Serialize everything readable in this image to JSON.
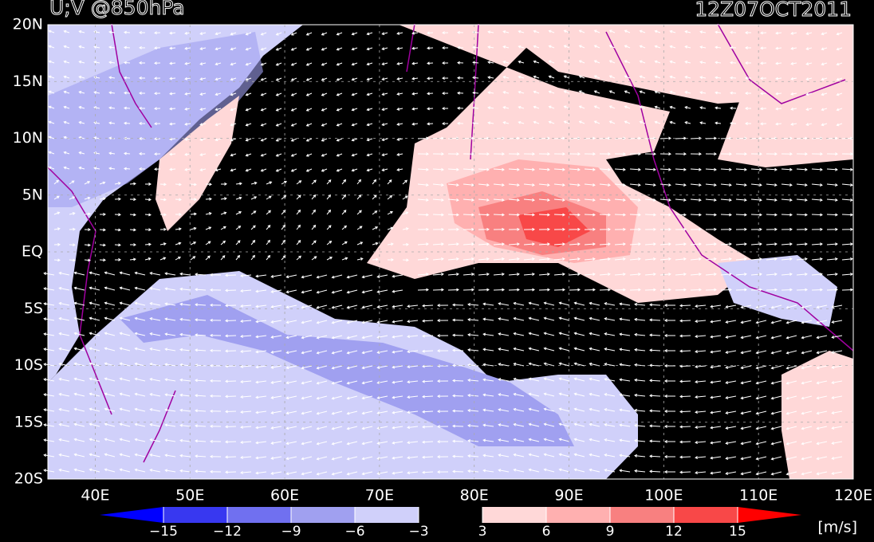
{
  "header": {
    "title": "U;V @850hPa",
    "time": "12Z07OCT2011"
  },
  "map": {
    "lat_labels": [
      {
        "value": 20,
        "label": "20N"
      },
      {
        "value": 15,
        "label": "15N"
      },
      {
        "value": 10,
        "label": "10N"
      },
      {
        "value": 5,
        "label": "5N"
      },
      {
        "value": 0,
        "label": "EQ"
      },
      {
        "value": -5,
        "label": "5S"
      },
      {
        "value": -10,
        "label": "10S"
      },
      {
        "value": -15,
        "label": "15S"
      },
      {
        "value": -20,
        "label": "20S"
      }
    ],
    "lon_labels": [
      {
        "value": 40,
        "label": "40E"
      },
      {
        "value": 50,
        "label": "50E"
      },
      {
        "value": 60,
        "label": "60E"
      },
      {
        "value": 70,
        "label": "70E"
      },
      {
        "value": 80,
        "label": "80E"
      },
      {
        "value": 90,
        "label": "90E"
      },
      {
        "value": 100,
        "label": "100E"
      },
      {
        "value": 110,
        "label": "110E"
      },
      {
        "value": 120,
        "label": "120E"
      }
    ]
  },
  "colorbar": {
    "unit": "[m/s]",
    "ticks": [
      {
        "value": -15,
        "label": "−15"
      },
      {
        "value": -12,
        "label": "−12"
      },
      {
        "value": -9,
        "label": "−9"
      },
      {
        "value": -6,
        "label": "−6"
      },
      {
        "value": -3,
        "label": "−3"
      },
      3,
      6,
      9,
      12,
      15
    ],
    "colors": [
      "#0000ff",
      "#3838f0",
      "#7070f0",
      "#a0a0f0",
      "#d0d0fa",
      "#000000",
      "#ffd8d8",
      "#ffb0b0",
      "#f88080",
      "#f84848",
      "#ff0000"
    ]
  }
}
